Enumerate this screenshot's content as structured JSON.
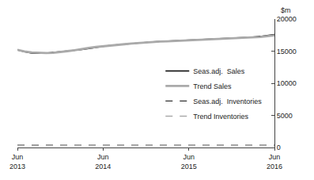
{
  "chart_data": {
    "type": "line",
    "ylabel": "$m",
    "categories": [
      "Jun\n2013",
      null,
      null,
      null,
      null,
      null,
      null,
      null,
      null,
      null,
      null,
      null,
      "Jun\n2014",
      null,
      null,
      null,
      null,
      null,
      null,
      null,
      null,
      null,
      null,
      null,
      "Jun\n2015",
      null,
      null,
      null,
      null,
      null,
      null,
      null,
      null,
      null,
      null,
      null,
      "Jun\n2016"
    ],
    "series": [
      {
        "name": "Seas.adj.  Sales",
        "color": "#000000",
        "line_style": "solid",
        "values": [
          15200,
          14900,
          14700,
          14650,
          14700,
          14800,
          14900,
          15000,
          15100,
          15250,
          15400,
          15600,
          15750,
          15900,
          16000,
          16100,
          16200,
          16300,
          16380,
          16450,
          16500,
          16550,
          16600,
          16650,
          16700,
          16750,
          16800,
          16850,
          16900,
          16950,
          17000,
          17050,
          17100,
          17200,
          17300,
          17450,
          17580
        ]
      },
      {
        "name": "Trend Sales",
        "color": "#aaaaaa",
        "line_style": "solid",
        "values": [
          15200,
          14950,
          14800,
          14720,
          14700,
          14750,
          14850,
          15000,
          15150,
          15350,
          15500,
          15650,
          15780,
          15880,
          15980,
          16080,
          16180,
          16280,
          16360,
          16430,
          16490,
          16540,
          16590,
          16630,
          16670,
          16710,
          16750,
          16800,
          16850,
          16900,
          16950,
          17000,
          17050,
          17120,
          17200,
          17320,
          17450
        ]
      },
      {
        "name": "Seas.adj.  Inventories",
        "color": "#333333",
        "line_style": "dash",
        "values": [
          380,
          350,
          355,
          360,
          370,
          360,
          350,
          345,
          340,
          345,
          355,
          365,
          370,
          360,
          350,
          345,
          348,
          352,
          355,
          352,
          348,
          345,
          350,
          355,
          352,
          348,
          345,
          350,
          355,
          352,
          348,
          345,
          350,
          355,
          350,
          348,
          355
        ]
      },
      {
        "name": "Trend Inventories",
        "color": "#aaaaaa",
        "line_style": "dash",
        "values": [
          365,
          358,
          354,
          352,
          351,
          350,
          350,
          350,
          350,
          350,
          350,
          350,
          350,
          350,
          350,
          350,
          350,
          350,
          350,
          350,
          350,
          350,
          350,
          350,
          350,
          350,
          350,
          350,
          350,
          350,
          350,
          350,
          350,
          350,
          350,
          350,
          350
        ]
      }
    ],
    "ylim": [
      0,
      20000
    ],
    "yticks": [
      0,
      5000,
      10000,
      15000,
      20000
    ],
    "grid": false,
    "legend": "right"
  }
}
